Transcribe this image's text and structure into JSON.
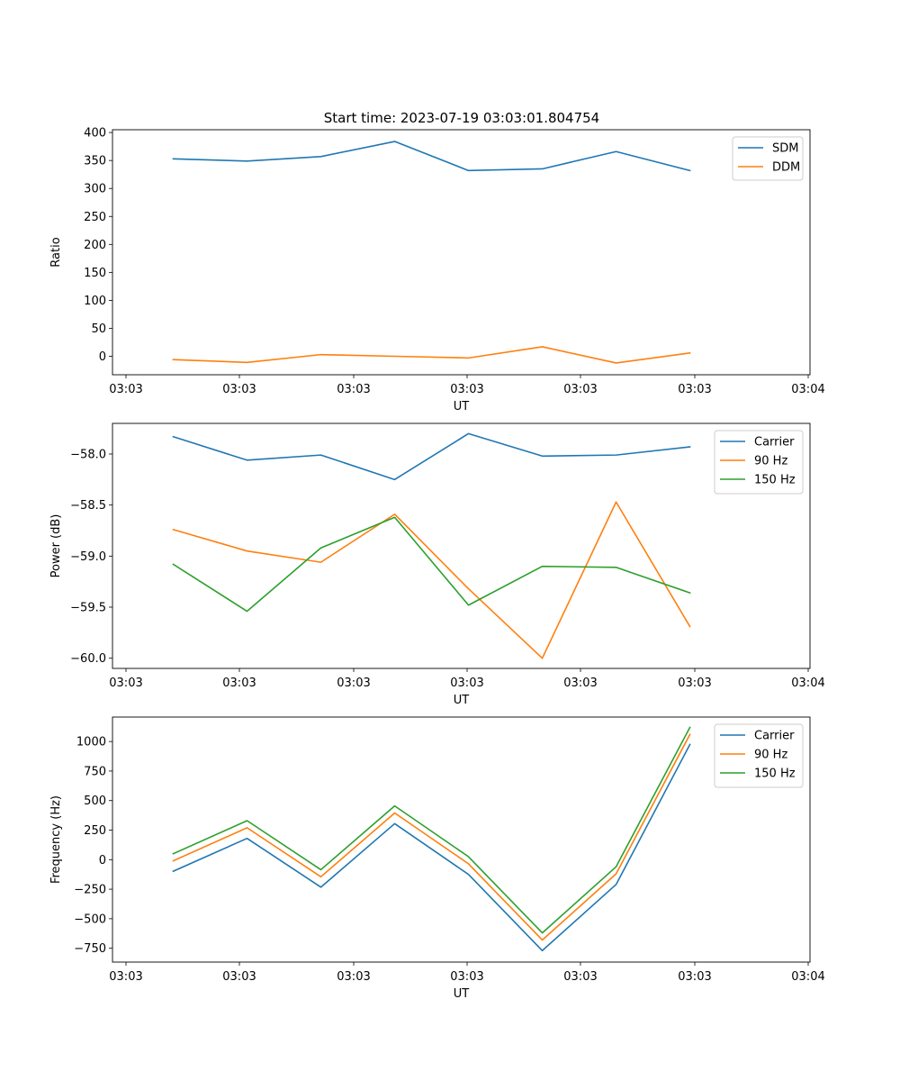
{
  "figure_title": "Start time: 2023-07-19 03:03:01.804754",
  "colors": {
    "blue": "#1f77b4",
    "orange": "#ff7f0e",
    "green": "#2ca02c"
  },
  "chart_data": [
    {
      "type": "line",
      "title": "Start time: 2023-07-19 03:03:01.804754",
      "xlabel": "UT",
      "ylabel": "Ratio",
      "x_tick_labels": [
        "03:03",
        "03:03",
        "03:03",
        "03:03",
        "03:03",
        "03:03",
        "03:04"
      ],
      "y_ticks": [
        0,
        50,
        100,
        150,
        200,
        250,
        300,
        350,
        400
      ],
      "y_tick_labels": [
        "0",
        "50",
        "100",
        "150",
        "200",
        "250",
        "300",
        "350",
        "400"
      ],
      "ylim": [
        -33,
        405
      ],
      "x": [
        1,
        2,
        3,
        4,
        5,
        6,
        7,
        8
      ],
      "xlim": [
        0.177,
        9.627
      ],
      "legend_loc": "upper right",
      "series": [
        {
          "name": "SDM",
          "color": "#1f77b4",
          "values": [
            353,
            349,
            357,
            384,
            332,
            335,
            366,
            332
          ]
        },
        {
          "name": "DDM",
          "color": "#ff7f0e",
          "values": [
            -6,
            -11,
            3,
            0,
            -3,
            17,
            -12,
            6
          ]
        }
      ]
    },
    {
      "type": "line",
      "title": "",
      "xlabel": "UT",
      "ylabel": "Power (dB)",
      "x_tick_labels": [
        "03:03",
        "03:03",
        "03:03",
        "03:03",
        "03:03",
        "03:03",
        "03:04"
      ],
      "y_ticks": [
        -60.0,
        -59.5,
        -59.0,
        -58.5,
        -58.0
      ],
      "y_tick_labels": [
        "−60.0",
        "−59.5",
        "−59.0",
        "−58.5",
        "−58.0"
      ],
      "ylim": [
        -60.1,
        -57.7
      ],
      "x": [
        1,
        2,
        3,
        4,
        5,
        6,
        7,
        8
      ],
      "xlim": [
        0.177,
        9.627
      ],
      "legend_loc": "upper right",
      "series": [
        {
          "name": "Carrier",
          "color": "#1f77b4",
          "values": [
            -57.83,
            -58.06,
            -58.01,
            -58.25,
            -57.8,
            -58.02,
            -58.01,
            -57.93
          ]
        },
        {
          "name": "90 Hz",
          "color": "#ff7f0e",
          "values": [
            -58.74,
            -58.95,
            -59.06,
            -58.59,
            -59.32,
            -60.0,
            -58.47,
            -59.69
          ]
        },
        {
          "name": "150 Hz",
          "color": "#2ca02c",
          "values": [
            -59.08,
            -59.54,
            -58.92,
            -58.62,
            -59.48,
            -59.1,
            -59.11,
            -59.36
          ]
        }
      ]
    },
    {
      "type": "line",
      "title": "",
      "xlabel": "UT",
      "ylabel": "Frequency (Hz)",
      "x_tick_labels": [
        "03:03",
        "03:03",
        "03:03",
        "03:03",
        "03:03",
        "03:03",
        "03:04"
      ],
      "y_ticks": [
        -750,
        -500,
        -250,
        0,
        250,
        500,
        750,
        1000
      ],
      "y_tick_labels": [
        "−750",
        "−500",
        "−250",
        "0",
        "250",
        "500",
        "750",
        "1000"
      ],
      "ylim": [
        -867,
        1207
      ],
      "x": [
        1,
        2,
        3,
        4,
        5,
        6,
        7,
        8
      ],
      "xlim": [
        0.177,
        9.627
      ],
      "legend_loc": "upper right",
      "series": [
        {
          "name": "Carrier",
          "color": "#1f77b4",
          "values": [
            -98,
            180,
            -233,
            305,
            -125,
            -770,
            -210,
            975
          ]
        },
        {
          "name": "90 Hz",
          "color": "#ff7f0e",
          "values": [
            -10,
            270,
            -145,
            395,
            -35,
            -680,
            -120,
            1060
          ]
        },
        {
          "name": "150 Hz",
          "color": "#2ca02c",
          "values": [
            50,
            330,
            -85,
            455,
            25,
            -620,
            -60,
            1120
          ]
        }
      ]
    }
  ]
}
